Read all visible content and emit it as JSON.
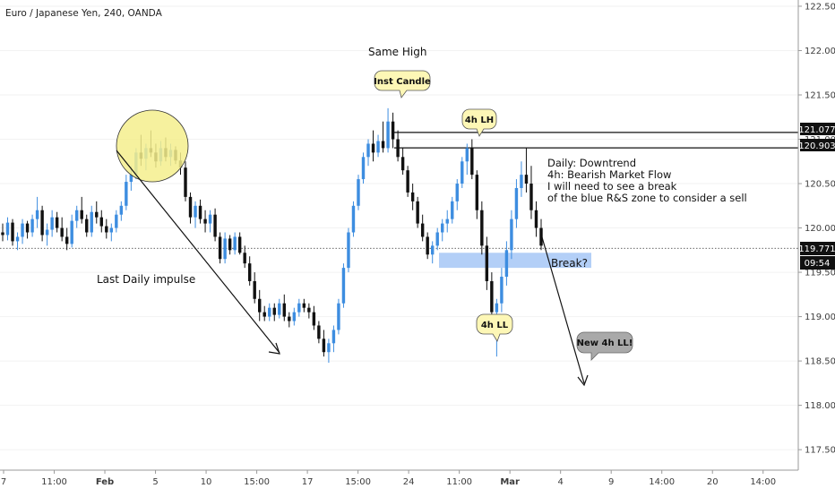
{
  "symbol_title": "Euro / Japanese Yen, 240, OANDA",
  "colors": {
    "up": "#3d8de0",
    "down": "#111111",
    "bubble_yellow": "#fdf7b6",
    "bubble_gray": "#a9a9a9",
    "zone": "#b3cff7",
    "circle_fill": "#f5ef8d",
    "price_badge": "#111111"
  },
  "annotations": {
    "same_high": "Same High",
    "inst_candle": "Inst Candle",
    "h4_lh": "4h LH",
    "h4_ll": "4h LL",
    "new_4h_ll": "New 4h LL!",
    "last_daily_impulse": "Last Daily impulse",
    "break_q": "Break?",
    "commentary": [
      "Daily: Downtrend",
      "4h: Bearish Market Flow",
      "I will need to see a break",
      "of the blue R&S zone to consider a sell"
    ]
  },
  "price_badges": {
    "level_1": "121.077",
    "level_2": "120.903",
    "last_price": "119.771",
    "countdown": "09:54"
  },
  "chart_data": {
    "type": "candlestick",
    "title": "Euro / Japanese Yen, 240, OANDA",
    "y_ticks": [
      "122.500",
      "122.000",
      "121.500",
      "121.000",
      "120.500",
      "120.000",
      "119.500",
      "119.000",
      "118.500",
      "118.000",
      "117.500"
    ],
    "x_ticks": [
      "7",
      "11:00",
      "Feb",
      "5",
      "10",
      "15:00",
      "17",
      "15:00",
      "24",
      "11:00",
      "Mar",
      "4",
      "9",
      "14:00",
      "20",
      "14:00"
    ],
    "x_ticks_bold": [
      "Feb",
      "Mar"
    ],
    "ylim": [
      117.35,
      122.55
    ],
    "horizontal_levels": [
      121.077,
      120.903
    ],
    "last_price": 119.771,
    "zone": [
      119.55,
      119.72
    ],
    "candles": [
      [
        119.95,
        120.05,
        119.85,
        119.92
      ],
      [
        119.92,
        120.12,
        119.86,
        120.06
      ],
      [
        120.06,
        120.1,
        119.8,
        119.85
      ],
      [
        119.85,
        119.95,
        119.75,
        119.9
      ],
      [
        119.9,
        120.1,
        119.82,
        120.05
      ],
      [
        120.05,
        120.08,
        119.88,
        119.95
      ],
      [
        119.95,
        120.15,
        119.9,
        120.1
      ],
      [
        120.1,
        120.35,
        120.0,
        120.2
      ],
      [
        120.2,
        120.25,
        119.85,
        119.92
      ],
      [
        119.92,
        120.05,
        119.8,
        119.98
      ],
      [
        119.98,
        120.2,
        119.9,
        120.12
      ],
      [
        120.12,
        120.18,
        119.95,
        120.0
      ],
      [
        120.0,
        120.12,
        119.85,
        119.9
      ],
      [
        119.9,
        120.0,
        119.75,
        119.82
      ],
      [
        119.82,
        120.15,
        119.78,
        120.08
      ],
      [
        120.08,
        120.25,
        120.0,
        120.2
      ],
      [
        120.2,
        120.35,
        120.05,
        120.1
      ],
      [
        120.1,
        120.15,
        119.9,
        119.95
      ],
      [
        119.95,
        120.25,
        119.9,
        120.18
      ],
      [
        120.18,
        120.3,
        120.05,
        120.12
      ],
      [
        120.12,
        120.2,
        119.95,
        120.02
      ],
      [
        120.02,
        120.1,
        119.88,
        119.95
      ],
      [
        119.95,
        120.05,
        119.85,
        120.0
      ],
      [
        120.0,
        120.2,
        119.95,
        120.15
      ],
      [
        120.15,
        120.3,
        120.08,
        120.25
      ],
      [
        120.25,
        120.6,
        120.2,
        120.52
      ],
      [
        120.52,
        120.7,
        120.42,
        120.6
      ],
      [
        120.6,
        120.9,
        120.55,
        120.85
      ],
      [
        120.85,
        121.05,
        120.7,
        120.78
      ],
      [
        120.78,
        120.95,
        120.65,
        120.9
      ],
      [
        120.9,
        121.1,
        120.8,
        120.85
      ],
      [
        120.85,
        120.95,
        120.68,
        120.75
      ],
      [
        120.75,
        120.98,
        120.7,
        120.9
      ],
      [
        120.9,
        121.02,
        120.75,
        120.8
      ],
      [
        120.8,
        120.95,
        120.7,
        120.88
      ],
      [
        120.88,
        120.92,
        120.72,
        120.76
      ],
      [
        120.76,
        120.85,
        120.6,
        120.68
      ],
      [
        120.68,
        120.75,
        120.3,
        120.35
      ],
      [
        120.35,
        120.4,
        120.05,
        120.12
      ],
      [
        120.12,
        120.3,
        120.0,
        120.25
      ],
      [
        120.25,
        120.32,
        120.05,
        120.1
      ],
      [
        120.1,
        120.2,
        119.95,
        120.05
      ],
      [
        120.05,
        120.2,
        119.95,
        120.15
      ],
      [
        120.15,
        120.22,
        119.85,
        119.9
      ],
      [
        119.9,
        119.95,
        119.6,
        119.65
      ],
      [
        119.65,
        119.95,
        119.6,
        119.88
      ],
      [
        119.88,
        119.92,
        119.7,
        119.75
      ],
      [
        119.75,
        119.95,
        119.7,
        119.9
      ],
      [
        119.9,
        119.95,
        119.7,
        119.72
      ],
      [
        119.72,
        119.8,
        119.55,
        119.6
      ],
      [
        119.6,
        119.68,
        119.35,
        119.4
      ],
      [
        119.4,
        119.5,
        119.15,
        119.2
      ],
      [
        119.2,
        119.3,
        118.95,
        119.05
      ],
      [
        119.05,
        119.12,
        118.95,
        119.0
      ],
      [
        119.0,
        119.15,
        118.95,
        119.1
      ],
      [
        119.1,
        119.15,
        118.95,
        119.02
      ],
      [
        119.02,
        119.2,
        118.98,
        119.15
      ],
      [
        119.15,
        119.25,
        118.95,
        119.0
      ],
      [
        119.0,
        119.05,
        118.88,
        118.95
      ],
      [
        118.95,
        119.1,
        118.9,
        119.05
      ],
      [
        119.05,
        119.2,
        119.0,
        119.15
      ],
      [
        119.15,
        119.2,
        119.05,
        119.1
      ],
      [
        119.1,
        119.15,
        118.98,
        119.05
      ],
      [
        119.05,
        119.12,
        118.85,
        118.9
      ],
      [
        118.9,
        118.95,
        118.7,
        118.75
      ],
      [
        118.75,
        118.85,
        118.55,
        118.6
      ],
      [
        118.6,
        118.75,
        118.48,
        118.7
      ],
      [
        118.7,
        118.9,
        118.6,
        118.85
      ],
      [
        118.85,
        119.2,
        118.8,
        119.15
      ],
      [
        119.15,
        119.6,
        119.1,
        119.55
      ],
      [
        119.55,
        120.0,
        119.5,
        119.95
      ],
      [
        119.95,
        120.3,
        119.9,
        120.25
      ],
      [
        120.25,
        120.6,
        120.2,
        120.55
      ],
      [
        120.55,
        120.85,
        120.5,
        120.8
      ],
      [
        120.8,
        121.0,
        120.7,
        120.95
      ],
      [
        120.95,
        121.1,
        120.75,
        120.85
      ],
      [
        120.85,
        121.05,
        120.8,
        120.98
      ],
      [
        120.98,
        121.2,
        120.85,
        120.9
      ],
      [
        120.9,
        121.35,
        120.85,
        121.2
      ],
      [
        121.2,
        121.3,
        120.9,
        121.0
      ],
      [
        121.0,
        121.1,
        120.75,
        120.8
      ],
      [
        120.8,
        120.9,
        120.6,
        120.65
      ],
      [
        120.65,
        120.7,
        120.35,
        120.4
      ],
      [
        120.4,
        120.5,
        120.2,
        120.3
      ],
      [
        120.3,
        120.35,
        120.0,
        120.05
      ],
      [
        120.05,
        120.15,
        119.85,
        119.9
      ],
      [
        119.9,
        119.95,
        119.65,
        119.7
      ],
      [
        119.7,
        119.85,
        119.6,
        119.8
      ],
      [
        119.8,
        120.0,
        119.75,
        119.95
      ],
      [
        119.95,
        120.1,
        119.85,
        120.05
      ],
      [
        120.05,
        120.2,
        119.95,
        120.1
      ],
      [
        120.1,
        120.35,
        120.05,
        120.3
      ],
      [
        120.3,
        120.55,
        120.2,
        120.5
      ],
      [
        120.5,
        120.8,
        120.45,
        120.75
      ],
      [
        120.75,
        120.95,
        120.6,
        120.9
      ],
      [
        120.9,
        121.0,
        120.55,
        120.6
      ],
      [
        120.6,
        120.65,
        120.1,
        120.2
      ],
      [
        120.2,
        120.3,
        119.7,
        119.8
      ],
      [
        119.8,
        119.9,
        119.3,
        119.4
      ],
      [
        119.4,
        119.5,
        118.95,
        119.05
      ],
      [
        119.05,
        119.2,
        118.55,
        119.15
      ],
      [
        119.15,
        119.55,
        119.05,
        119.45
      ],
      [
        119.45,
        119.85,
        119.35,
        119.75
      ],
      [
        119.75,
        120.2,
        119.65,
        120.1
      ],
      [
        120.1,
        120.55,
        120.0,
        120.45
      ],
      [
        120.45,
        120.75,
        120.35,
        120.6
      ],
      [
        120.6,
        120.9,
        120.4,
        120.5
      ],
      [
        120.5,
        120.7,
        120.1,
        120.2
      ],
      [
        120.2,
        120.3,
        119.9,
        120.0
      ],
      [
        120.0,
        120.1,
        119.75,
        119.8
      ]
    ]
  }
}
